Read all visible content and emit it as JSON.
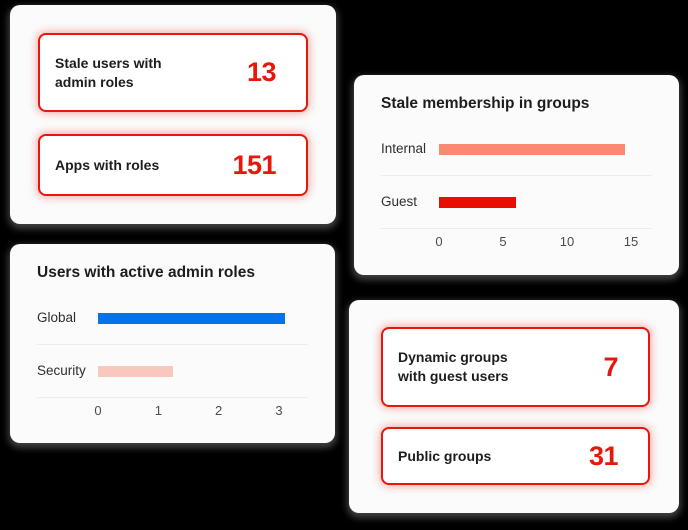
{
  "colors": {
    "page_bg": "#000000",
    "card_bg": "#fbfbfb",
    "tile_bg": "#ffffff",
    "alert_red": "#e8170c",
    "divider": "#ececec",
    "title_text": "#1d1d1d",
    "label_text": "#2e2e2e",
    "tick_text": "#4c4c4c"
  },
  "stat_cards": [
    {
      "id": "admin-role-alerts",
      "tiles": [
        {
          "label": "Stale users with admin roles",
          "value": "13"
        },
        {
          "label": "Apps with roles",
          "value": "151"
        }
      ]
    },
    {
      "id": "group-alerts",
      "tiles": [
        {
          "label": "Dynamic groups with guest users",
          "value": "7"
        },
        {
          "label": "Public groups",
          "value": "31"
        }
      ]
    }
  ],
  "chart_data": [
    {
      "id": "stale-membership",
      "type": "bar",
      "orientation": "horizontal",
      "title": "Stale membership in groups",
      "categories": [
        "Internal",
        "Guest"
      ],
      "values": [
        14.5,
        6
      ],
      "bar_colors": [
        "#f98a6f",
        "#e90d00"
      ],
      "xticks": [
        0,
        5,
        10,
        15
      ],
      "xlim": [
        0,
        15
      ],
      "grid": false,
      "legend": false
    },
    {
      "id": "active-admin-roles",
      "type": "bar",
      "orientation": "horizontal",
      "title": "Users with active admin roles",
      "categories": [
        "Global",
        "Security"
      ],
      "values": [
        3.1,
        1.25
      ],
      "bar_colors": [
        "#0473e6",
        "#f8c8be"
      ],
      "xticks": [
        0,
        1,
        2,
        3
      ],
      "xlim": [
        0,
        3
      ],
      "grid": false,
      "legend": false
    }
  ]
}
